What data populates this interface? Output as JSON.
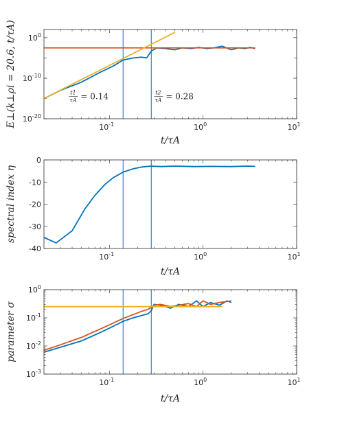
{
  "colors": {
    "blue": "#0072BD",
    "orange": "#D95319",
    "yellow": "#EDB120",
    "axis": "#262626"
  },
  "chart_data": [
    {
      "type": "line",
      "xlabel": "t/τ_A",
      "ylabel": "E⊥(k⊥ρi = 20.6, t/τA)",
      "xscale": "log",
      "yscale": "log",
      "xlim": [
        0.02,
        10
      ],
      "ylim": [
        1e-20,
        100.0
      ],
      "xticks": [
        0.1,
        1,
        10
      ],
      "xtick_labels": [
        {
          "base": "10",
          "exp": "-1"
        },
        {
          "base": "10",
          "exp": "0"
        },
        {
          "base": "10",
          "exp": "1"
        }
      ],
      "yticks": [
        1e-20,
        1e-10,
        1
      ],
      "ytick_labels": [
        {
          "base": "10",
          "exp": "-20"
        },
        {
          "base": "10",
          "exp": "-10"
        },
        {
          "base": "10",
          "exp": "0"
        }
      ],
      "vlines": [
        0.14,
        0.28
      ],
      "annotations": [
        {
          "num": "t1",
          "den": "τA",
          "value": "= 0.14",
          "x": 0.037,
          "y": 1e-15
        },
        {
          "num": "t2",
          "den": "τA",
          "value": "= 0.28",
          "x": 0.3,
          "y": 1e-15
        }
      ],
      "series": [
        {
          "color": "blue",
          "x": [
            0.02,
            0.03,
            0.05,
            0.08,
            0.11,
            0.14,
            0.18,
            0.22,
            0.25,
            0.28,
            0.32,
            0.4,
            0.5,
            0.6,
            0.75,
            0.9,
            1.1,
            1.3,
            1.6,
            2.0,
            2.4,
            2.8,
            3.2,
            3.6
          ],
          "y": [
            1e-15,
            1e-13,
            1e-11,
            3e-09,
            1e-07,
            3e-06,
            1e-05,
            1.5e-05,
            1e-05,
            0.0005,
            0.003,
            0.002,
            0.001,
            0.003,
            0.002,
            0.004,
            0.002,
            0.003,
            0.008,
            0.001,
            0.003,
            0.002,
            0.004,
            0.002
          ]
        },
        {
          "color": "orange",
          "x": [
            0.02,
            3.6
          ],
          "y": [
            0.003,
            0.003
          ]
        },
        {
          "color": "yellow",
          "x": [
            0.02,
            0.5
          ],
          "y": [
            1e-15,
            20
          ]
        }
      ]
    },
    {
      "type": "line",
      "xlabel": "t/τ_A",
      "ylabel": "spectral index η",
      "xscale": "log",
      "yscale": "linear",
      "xlim": [
        0.02,
        10
      ],
      "ylim": [
        -40,
        0
      ],
      "xticks": [
        0.1,
        1,
        10
      ],
      "xtick_labels": [
        {
          "base": "10",
          "exp": "-1"
        },
        {
          "base": "10",
          "exp": "0"
        },
        {
          "base": "10",
          "exp": "1"
        }
      ],
      "yticks": [
        -40,
        -30,
        -20,
        -10,
        0
      ],
      "ytick_labels": [
        "-40",
        "-30",
        "-20",
        "-10",
        "0"
      ],
      "vlines": [
        0.14,
        0.28
      ],
      "series": [
        {
          "color": "blue",
          "x": [
            0.02,
            0.027,
            0.04,
            0.055,
            0.07,
            0.09,
            0.11,
            0.14,
            0.18,
            0.22,
            0.28,
            0.35,
            0.5,
            0.8,
            1.2,
            2,
            3,
            3.6
          ],
          "y": [
            -35,
            -37.5,
            -32,
            -22,
            -16,
            -11,
            -8,
            -5.5,
            -4,
            -3.2,
            -2.8,
            -3,
            -2.8,
            -3,
            -2.9,
            -3,
            -2.8,
            -2.9
          ]
        }
      ]
    },
    {
      "type": "line",
      "xlabel": "t/τ_A",
      "ylabel": "parameter σ",
      "xscale": "log",
      "yscale": "log",
      "xlim": [
        0.02,
        10
      ],
      "ylim": [
        0.001,
        1
      ],
      "xticks": [
        0.1,
        1,
        10
      ],
      "xtick_labels": [
        {
          "base": "10",
          "exp": "-1"
        },
        {
          "base": "10",
          "exp": "0"
        },
        {
          "base": "10",
          "exp": "1"
        }
      ],
      "yticks": [
        0.001,
        0.01,
        0.1,
        1
      ],
      "ytick_labels": [
        {
          "base": "10",
          "exp": "-3"
        },
        {
          "base": "10",
          "exp": "-2"
        },
        {
          "base": "10",
          "exp": "-1"
        },
        {
          "base": "10",
          "exp": "0"
        }
      ],
      "vlines": [
        0.14,
        0.28
      ],
      "series": [
        {
          "color": "blue",
          "x": [
            0.02,
            0.03,
            0.05,
            0.08,
            0.11,
            0.14,
            0.18,
            0.22,
            0.26,
            0.28,
            0.3,
            0.35,
            0.45,
            0.55,
            0.7,
            0.85,
            1.0,
            1.2,
            1.5,
            1.8,
            2.0
          ],
          "y": [
            0.006,
            0.009,
            0.015,
            0.03,
            0.05,
            0.075,
            0.1,
            0.12,
            0.14,
            0.18,
            0.3,
            0.28,
            0.22,
            0.3,
            0.25,
            0.4,
            0.25,
            0.35,
            0.28,
            0.4,
            0.35
          ]
        },
        {
          "color": "orange",
          "x": [
            0.02,
            0.03,
            0.05,
            0.08,
            0.11,
            0.14,
            0.18,
            0.22,
            0.26,
            0.28,
            0.3,
            0.35,
            0.45,
            0.55,
            0.7,
            0.85,
            1.0,
            1.2,
            1.5,
            1.8,
            2.0
          ],
          "y": [
            0.007,
            0.011,
            0.02,
            0.04,
            0.065,
            0.095,
            0.13,
            0.17,
            0.2,
            0.24,
            0.28,
            0.3,
            0.25,
            0.28,
            0.32,
            0.25,
            0.4,
            0.3,
            0.35,
            0.38,
            0.4
          ]
        },
        {
          "color": "yellow",
          "x": [
            0.02,
            1.6
          ],
          "y": [
            0.25,
            0.25
          ]
        }
      ]
    }
  ]
}
